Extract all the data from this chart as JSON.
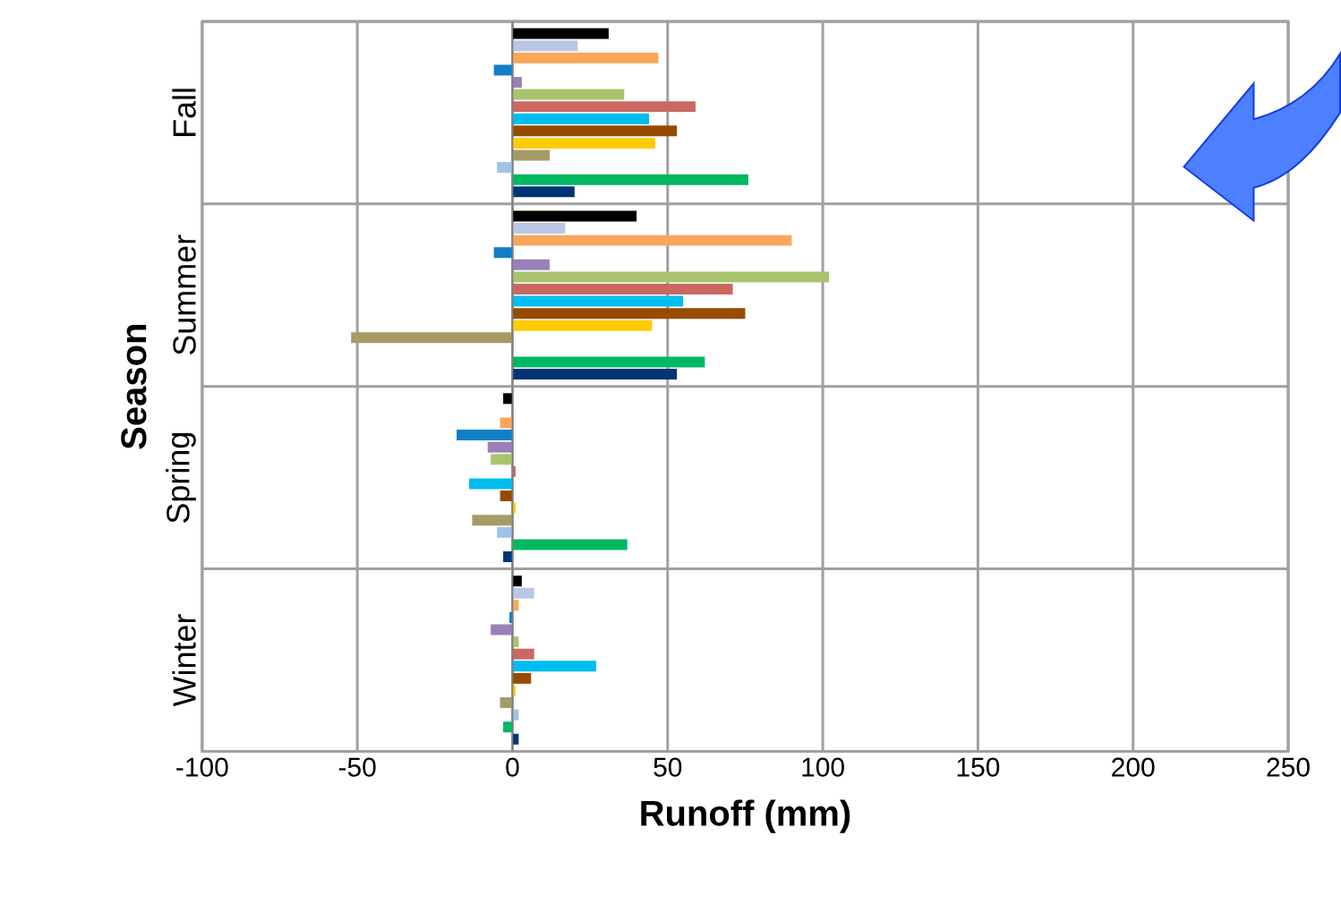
{
  "chart_data": {
    "type": "bar",
    "orientation": "horizontal",
    "xlabel": "Runoff (mm)",
    "ylabel": "Season",
    "categories": [
      "Fall",
      "Summer",
      "Spring",
      "Winter"
    ],
    "xlim": [
      -100,
      250
    ],
    "xticks": [
      -100,
      -50,
      0,
      50,
      100,
      150,
      200,
      250
    ],
    "grid": true,
    "series": [
      {
        "color": "#003575",
        "values": [
          20,
          53,
          -3,
          2
        ]
      },
      {
        "color": "#00b862",
        "values": [
          76,
          62,
          37,
          -3
        ]
      },
      {
        "color": "#9fc3e8",
        "values": [
          -5,
          0,
          -5,
          2
        ]
      },
      {
        "color": "#a69a66",
        "values": [
          12,
          -52,
          -13,
          -4
        ]
      },
      {
        "color": "#ffcc00",
        "values": [
          46,
          45,
          1,
          1
        ]
      },
      {
        "color": "#964b00",
        "values": [
          53,
          75,
          -4,
          6
        ]
      },
      {
        "color": "#00bdf0",
        "values": [
          44,
          55,
          -14,
          27
        ]
      },
      {
        "color": "#cc6862",
        "values": [
          59,
          71,
          1,
          7
        ]
      },
      {
        "color": "#a9c46e",
        "values": [
          36,
          102,
          -7,
          2
        ]
      },
      {
        "color": "#9b7fb9",
        "values": [
          3,
          12,
          -8,
          -7
        ]
      },
      {
        "color": "#0f7fc8",
        "values": [
          -6,
          -6,
          -18,
          -1
        ]
      },
      {
        "color": "#f9a65a",
        "values": [
          47,
          90,
          -4,
          2
        ]
      },
      {
        "color": "#b9c7e4",
        "values": [
          21,
          17,
          0,
          7
        ]
      },
      {
        "color": "#000000",
        "values": [
          31,
          40,
          -3,
          3
        ]
      }
    ]
  }
}
